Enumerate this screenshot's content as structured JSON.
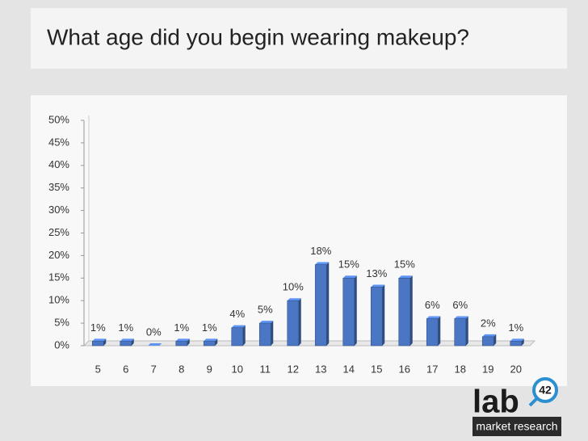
{
  "chart_data": {
    "type": "bar",
    "title": "What age did you begin wearing makeup?",
    "categories": [
      "5",
      "6",
      "7",
      "8",
      "9",
      "10",
      "11",
      "12",
      "13",
      "14",
      "15",
      "16",
      "17",
      "18",
      "19",
      "20"
    ],
    "values": [
      1,
      1,
      0,
      1,
      1,
      4,
      5,
      10,
      18,
      15,
      13,
      15,
      6,
      6,
      2,
      1
    ],
    "value_labels": [
      "1%",
      "1%",
      "0%",
      "1%",
      "1%",
      "4%",
      "5%",
      "10%",
      "18%",
      "15%",
      "13%",
      "15%",
      "6%",
      "6%",
      "2%",
      "1%"
    ],
    "color": "#4a76c4",
    "ylim": [
      0,
      50
    ],
    "yticks": [
      {
        "value": 0,
        "label": "0%"
      },
      {
        "value": 5,
        "label": "5%"
      },
      {
        "value": 10,
        "label": "10%"
      },
      {
        "value": 15,
        "label": "15%"
      },
      {
        "value": 20,
        "label": "20%"
      },
      {
        "value": 25,
        "label": "25%"
      },
      {
        "value": 30,
        "label": "30%"
      },
      {
        "value": 35,
        "label": "35%"
      },
      {
        "value": 40,
        "label": "40%"
      },
      {
        "value": 45,
        "label": "45%"
      },
      {
        "value": 50,
        "label": "50%"
      }
    ],
    "grid": false
  },
  "logo": {
    "name": "lab",
    "badge": "42",
    "tagline": "market research"
  }
}
